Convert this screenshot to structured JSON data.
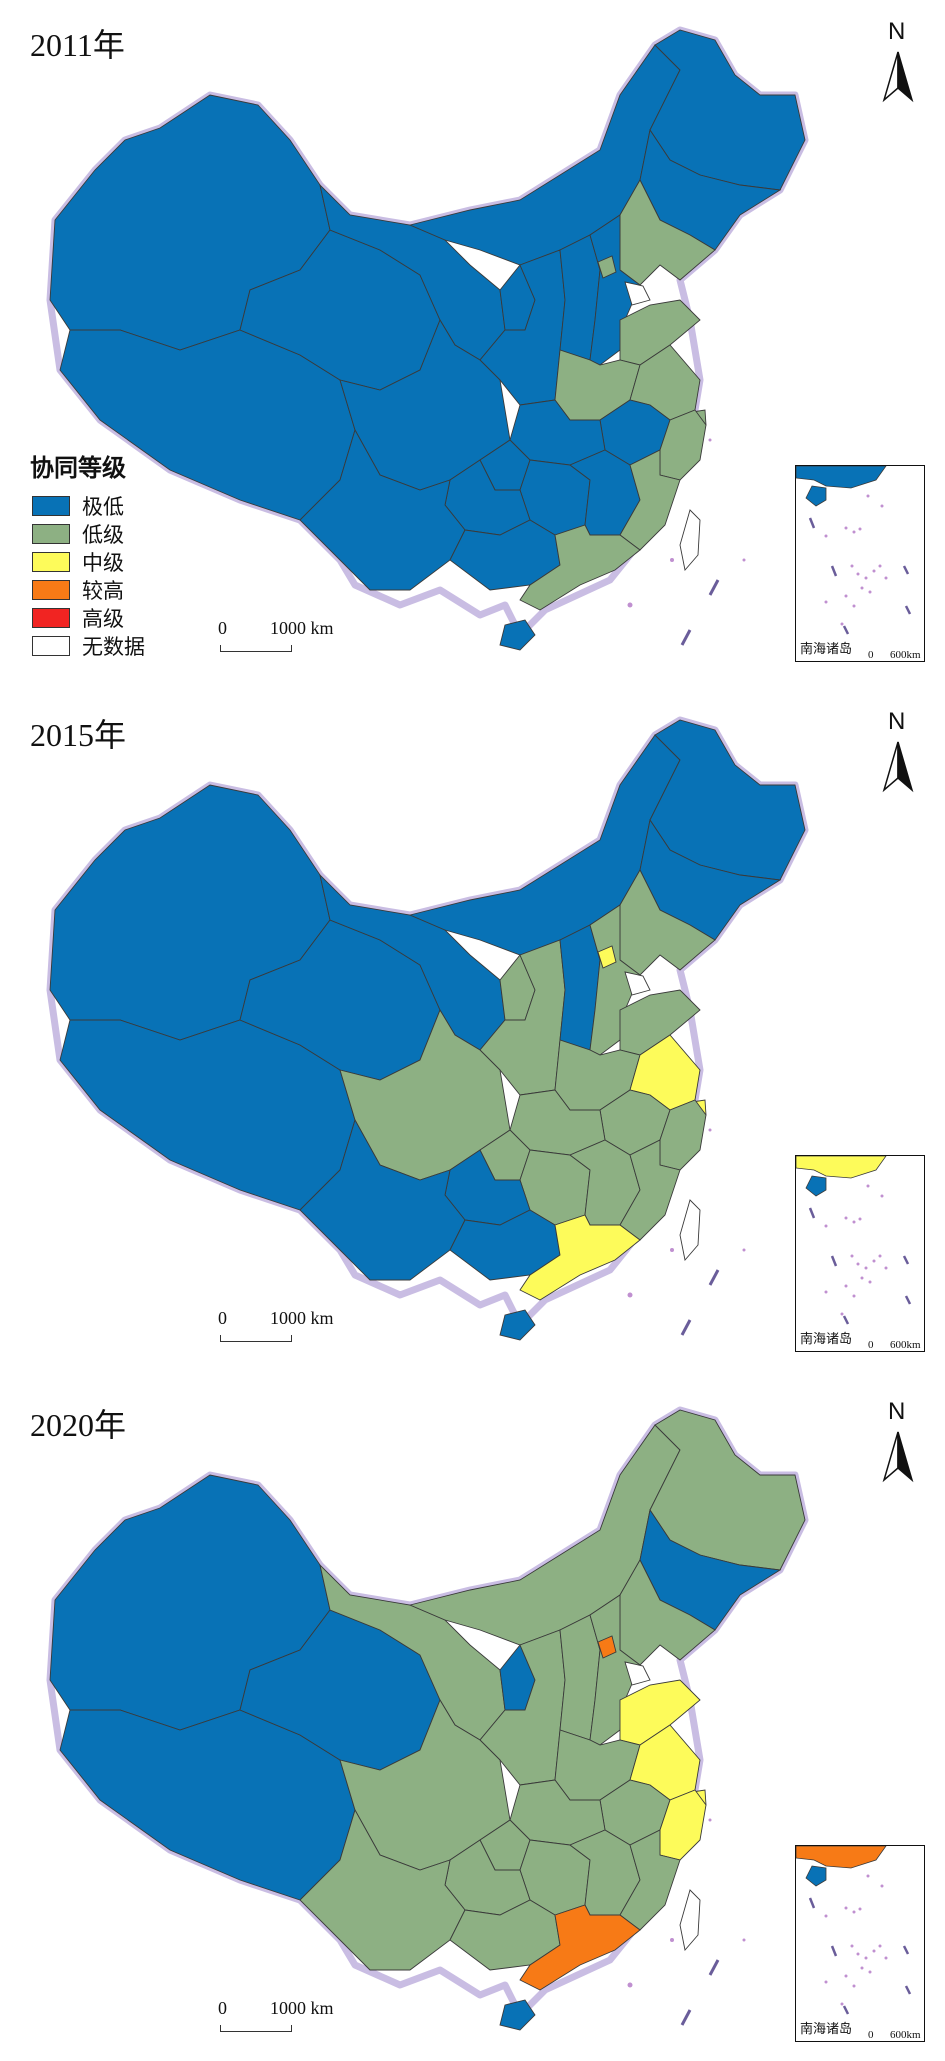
{
  "legend": {
    "title": "协同等级",
    "items": [
      {
        "key": "very_low",
        "label": "极低",
        "color": "#0872b6"
      },
      {
        "key": "low",
        "label": "低级",
        "color": "#8db083"
      },
      {
        "key": "mid",
        "label": "中级",
        "color": "#fdfb5a"
      },
      {
        "key": "higher",
        "label": "较高",
        "color": "#f77a16"
      },
      {
        "key": "high",
        "label": "高级",
        "color": "#f12422"
      },
      {
        "key": "nodata",
        "label": "无数据",
        "color": "#ffffff"
      }
    ]
  },
  "north_label": "N",
  "scale": {
    "zero": "0",
    "distance": "1000 km"
  },
  "inset": {
    "label": "南海诸岛",
    "zero": "0",
    "distance": "600km"
  },
  "panels": [
    {
      "year": "2011年",
      "regions": {
        "xinjiang": "very_low",
        "tibet": "very_low",
        "qinghai": "very_low",
        "gansu": "very_low",
        "inner_mongolia": "very_low",
        "heilongjiang": "very_low",
        "jilin": "very_low",
        "liaoning": "low",
        "hebei": "very_low",
        "beijing": "low",
        "tianjin": "nodata",
        "shanxi": "very_low",
        "shaanxi": "very_low",
        "ningxia": "very_low",
        "shandong": "low",
        "henan": "low",
        "jiangsu": "low",
        "anhui": "very_low",
        "hubei": "very_low",
        "sichuan": "very_low",
        "chongqing": "very_low",
        "yunnan": "very_low",
        "guizhou": "very_low",
        "hunan": "very_low",
        "jiangxi": "very_low",
        "zhejiang": "low",
        "shanghai": "low",
        "fujian": "low",
        "guangdong": "low",
        "guangxi": "very_low",
        "hainan": "very_low",
        "taiwan": "nodata"
      },
      "inset_top": "very_low"
    },
    {
      "year": "2015年",
      "regions": {
        "xinjiang": "very_low",
        "tibet": "very_low",
        "qinghai": "very_low",
        "gansu": "very_low",
        "inner_mongolia": "very_low",
        "heilongjiang": "very_low",
        "jilin": "very_low",
        "liaoning": "low",
        "hebei": "low",
        "beijing": "mid",
        "tianjin": "nodata",
        "shanxi": "very_low",
        "shaanxi": "low",
        "ningxia": "low",
        "shandong": "low",
        "henan": "low",
        "jiangsu": "mid",
        "anhui": "low",
        "hubei": "low",
        "sichuan": "low",
        "chongqing": "low",
        "yunnan": "very_low",
        "guizhou": "very_low",
        "hunan": "low",
        "jiangxi": "low",
        "zhejiang": "low",
        "shanghai": "mid",
        "fujian": "low",
        "guangdong": "mid",
        "guangxi": "very_low",
        "hainan": "very_low",
        "taiwan": "nodata"
      },
      "inset_top": "mid"
    },
    {
      "year": "2020年",
      "regions": {
        "xinjiang": "very_low",
        "tibet": "very_low",
        "qinghai": "very_low",
        "gansu": "low",
        "inner_mongolia": "low",
        "heilongjiang": "low",
        "jilin": "very_low",
        "liaoning": "low",
        "hebei": "low",
        "beijing": "higher",
        "tianjin": "nodata",
        "shanxi": "low",
        "shaanxi": "low",
        "ningxia": "very_low",
        "shandong": "mid",
        "henan": "low",
        "jiangsu": "mid",
        "anhui": "low",
        "hubei": "low",
        "sichuan": "low",
        "chongqing": "low",
        "yunnan": "low",
        "guizhou": "low",
        "hunan": "low",
        "jiangxi": "low",
        "zhejiang": "mid",
        "shanghai": "mid",
        "fujian": "low",
        "guangdong": "higher",
        "guangxi": "low",
        "hainan": "very_low",
        "taiwan": "nodata"
      },
      "inset_top": "higher"
    }
  ]
}
